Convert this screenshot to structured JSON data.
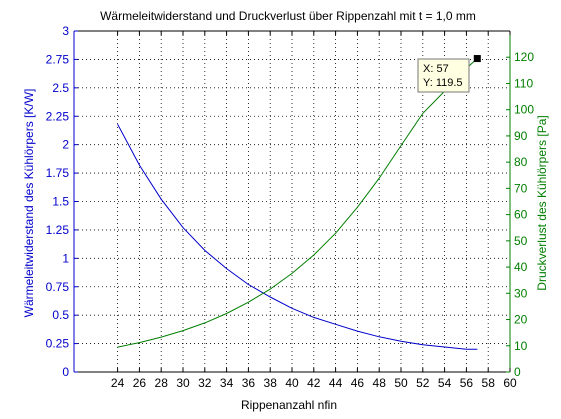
{
  "chart_data": {
    "type": "line",
    "title": "Wärmeleitwiderstand und Druckverlust über Rippenzahl mit t = 1,0 mm",
    "xlabel": "Rippenanzahl nfin",
    "ylabel_left": "Wärmeleitwiderstand des Kühlörpers [K/W]",
    "ylabel_right": "Druckverlust des Kühlörpers [Pa]",
    "xlim": [
      20,
      60
    ],
    "ylim_left": [
      0,
      3
    ],
    "ylim_right": [
      0,
      130
    ],
    "xticks": [
      "24",
      "26",
      "28",
      "30",
      "32",
      "34",
      "36",
      "38",
      "40",
      "42",
      "44",
      "46",
      "48",
      "50",
      "52",
      "54",
      "56",
      "58",
      "60"
    ],
    "yticks_left": [
      "0",
      "0.25",
      "0.5",
      "0.75",
      "1",
      "1.25",
      "1.5",
      "1.75",
      "2",
      "2.25",
      "2.5",
      "2.75",
      "3"
    ],
    "yticks_right": [
      "0",
      "10",
      "20",
      "30",
      "40",
      "50",
      "60",
      "70",
      "80",
      "90",
      "100",
      "110",
      "120"
    ],
    "grid": true,
    "series": [
      {
        "axis": "left",
        "color": "#0000cc",
        "x": [
          24,
          26,
          28,
          30,
          32,
          34,
          36,
          38,
          40,
          42,
          44,
          46,
          48,
          50,
          52,
          54,
          56,
          57
        ],
        "values": [
          2.18,
          1.82,
          1.52,
          1.27,
          1.07,
          0.91,
          0.77,
          0.66,
          0.56,
          0.48,
          0.42,
          0.36,
          0.31,
          0.27,
          0.24,
          0.22,
          0.2,
          0.2
        ]
      },
      {
        "axis": "right",
        "color": "#007f00",
        "x": [
          24,
          26,
          28,
          30,
          32,
          34,
          36,
          38,
          40,
          42,
          44,
          46,
          48,
          50,
          52,
          54,
          56,
          57
        ],
        "values": [
          9.5,
          11.2,
          13.3,
          15.8,
          18.7,
          22.3,
          26.6,
          31.6,
          37.6,
          44.6,
          52.9,
          62.8,
          73.9,
          86.3,
          98.6,
          107.1,
          115.8,
          119.5
        ]
      }
    ],
    "annotation": {
      "x": 57,
      "y": 119.5,
      "line1": "X: 57",
      "line2": "Y: 119.5"
    }
  },
  "colors": {
    "left_axis": "#0000cc",
    "right_axis": "#007f00",
    "grid": "#000000"
  }
}
